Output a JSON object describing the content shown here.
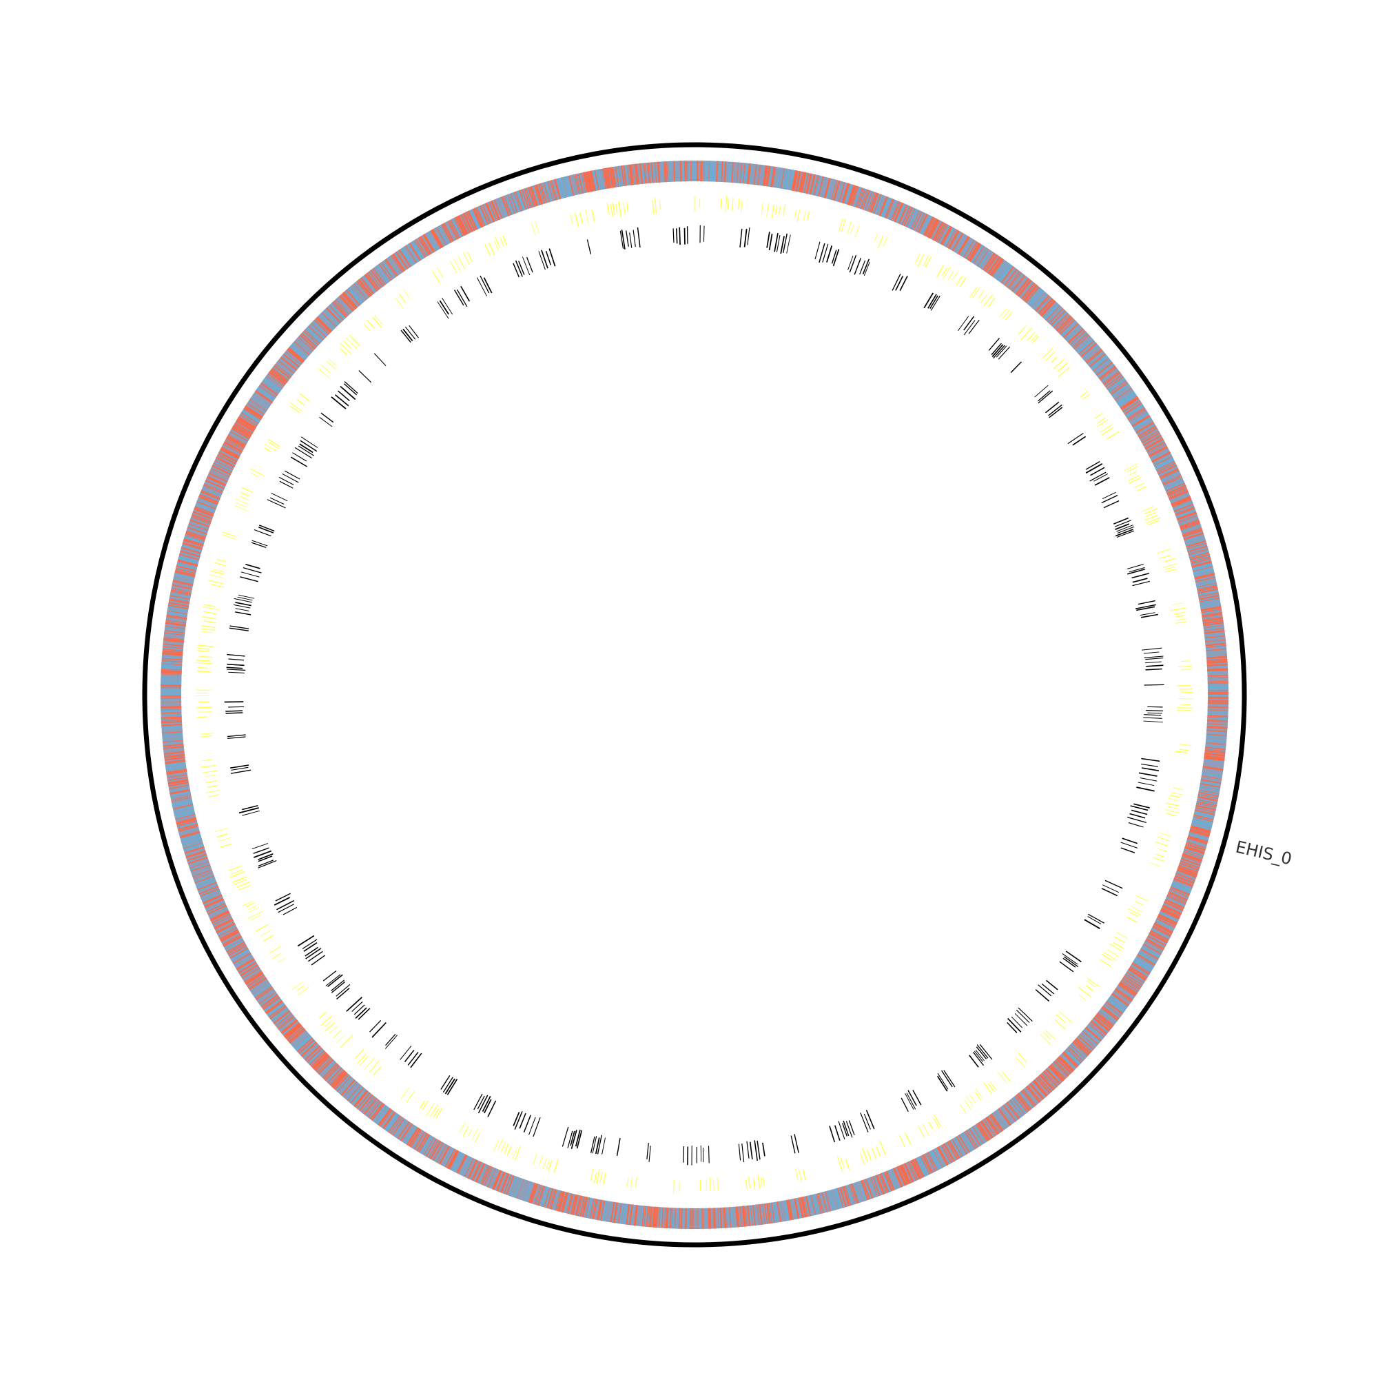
{
  "diagram": {
    "type": "circular-genome-map",
    "sequence_label": "EHIS_0",
    "colors": {
      "background": "#ffffff",
      "outer_ring": "#000000",
      "strand_forward": "#fb6a4a",
      "strand_reverse": "#6baed6",
      "strand_blend": "#8f9fba",
      "track_yellow": "#ffff55",
      "track_black": "#000000",
      "label_text": "#333333"
    },
    "tracks": [
      {
        "name": "strand-colored-features",
        "color_keys": [
          "strand_forward",
          "strand_reverse",
          "strand_blend"
        ]
      },
      {
        "name": "yellow-features",
        "color_key": "track_yellow"
      },
      {
        "name": "black-features",
        "color_key": "track_black"
      }
    ]
  }
}
